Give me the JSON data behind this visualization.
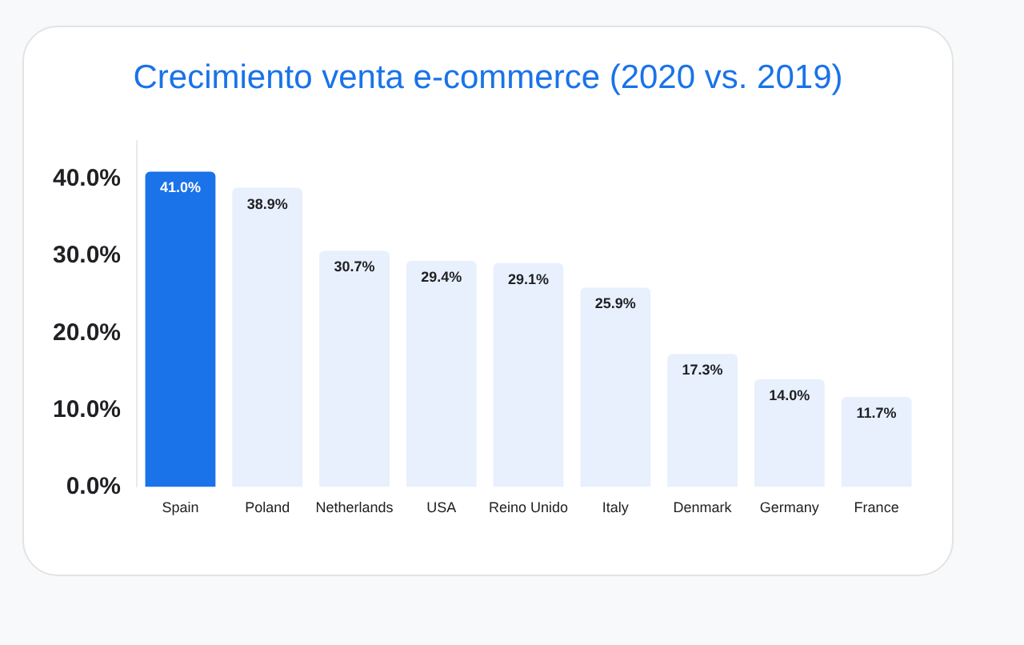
{
  "chart_data": {
    "type": "bar",
    "title": "Crecimiento venta e-commerce (2020 vs. 2019)",
    "categories": [
      "Spain",
      "Poland",
      "Netherlands",
      "USA",
      "Reino Unido",
      "Italy",
      "Denmark",
      "Germany",
      "France"
    ],
    "values": [
      41.0,
      38.9,
      30.7,
      29.4,
      29.1,
      25.9,
      17.3,
      14.0,
      11.7
    ],
    "colors": [
      "#1a73e8",
      "#e8f0fe",
      "#e8f0fe",
      "#e8f0fe",
      "#e8f0fe",
      "#e8f0fe",
      "#e8f0fe",
      "#e8f0fe",
      "#e8f0fe"
    ],
    "value_labels": [
      "41.0%",
      "38.9%",
      "30.7%",
      "29.4%",
      "29.1%",
      "25.9%",
      "17.3%",
      "14.0%",
      "11.7%"
    ],
    "ylim": [
      0,
      45
    ],
    "yticks": [
      {
        "value": 0,
        "label": "0.0%"
      },
      {
        "value": 10,
        "label": "10.0%"
      },
      {
        "value": 20,
        "label": "20.0%"
      },
      {
        "value": 30,
        "label": "30.0%"
      },
      {
        "value": 40,
        "label": "40.0%"
      }
    ],
    "grid": false,
    "legend": false
  }
}
